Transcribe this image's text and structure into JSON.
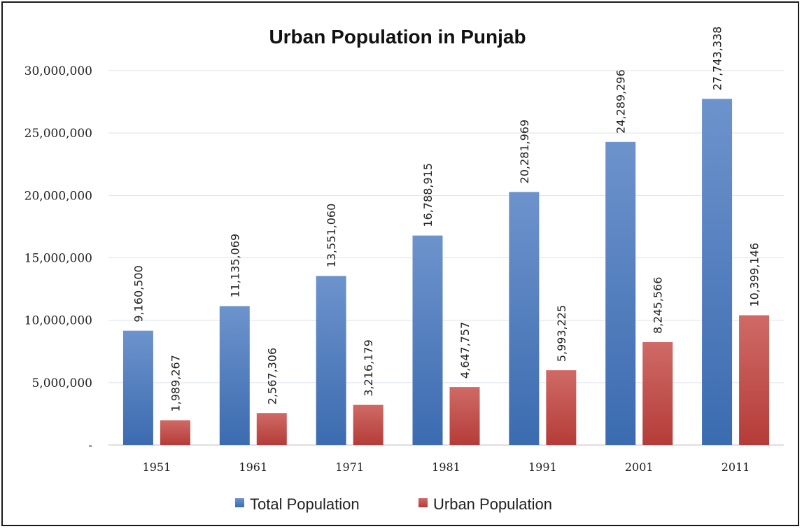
{
  "chart_data": {
    "type": "bar",
    "title": "Urban Population in Punjab",
    "categories": [
      "1951",
      "1961",
      "1971",
      "1981",
      "1991",
      "2001",
      "2011"
    ],
    "series": [
      {
        "name": "Total Population",
        "values": [
          9160500,
          11135069,
          13551060,
          16788915,
          20281969,
          24289296,
          27743338
        ],
        "labels": [
          "9,160,500",
          "11,135,069",
          "13,551,060",
          "16,788,915",
          "20,281,969",
          "24,289,296",
          "27,743,338"
        ],
        "color": "#4f81bd"
      },
      {
        "name": "Urban Population",
        "values": [
          1989267,
          2567306,
          3216179,
          4647757,
          5993225,
          8245566,
          10399146
        ],
        "labels": [
          "1,989,267",
          "2,567,306",
          "3,216,179",
          "4,647,757",
          "5,993,225",
          "8,245,566",
          "10,399,146"
        ],
        "color": "#c0504d"
      }
    ],
    "yticks": [
      {
        "value": 0,
        "label": "-"
      },
      {
        "value": 5000000,
        "label": "5,000,000"
      },
      {
        "value": 10000000,
        "label": "10,000,000"
      },
      {
        "value": 15000000,
        "label": "15,000,000"
      },
      {
        "value": 20000000,
        "label": "20,000,000"
      },
      {
        "value": 25000000,
        "label": "25,000,000"
      },
      {
        "value": 30000000,
        "label": "30,000,000"
      }
    ],
    "ylim": [
      0,
      30000000
    ],
    "grid": true,
    "legend": "bottom",
    "xlabel": "",
    "ylabel": ""
  }
}
